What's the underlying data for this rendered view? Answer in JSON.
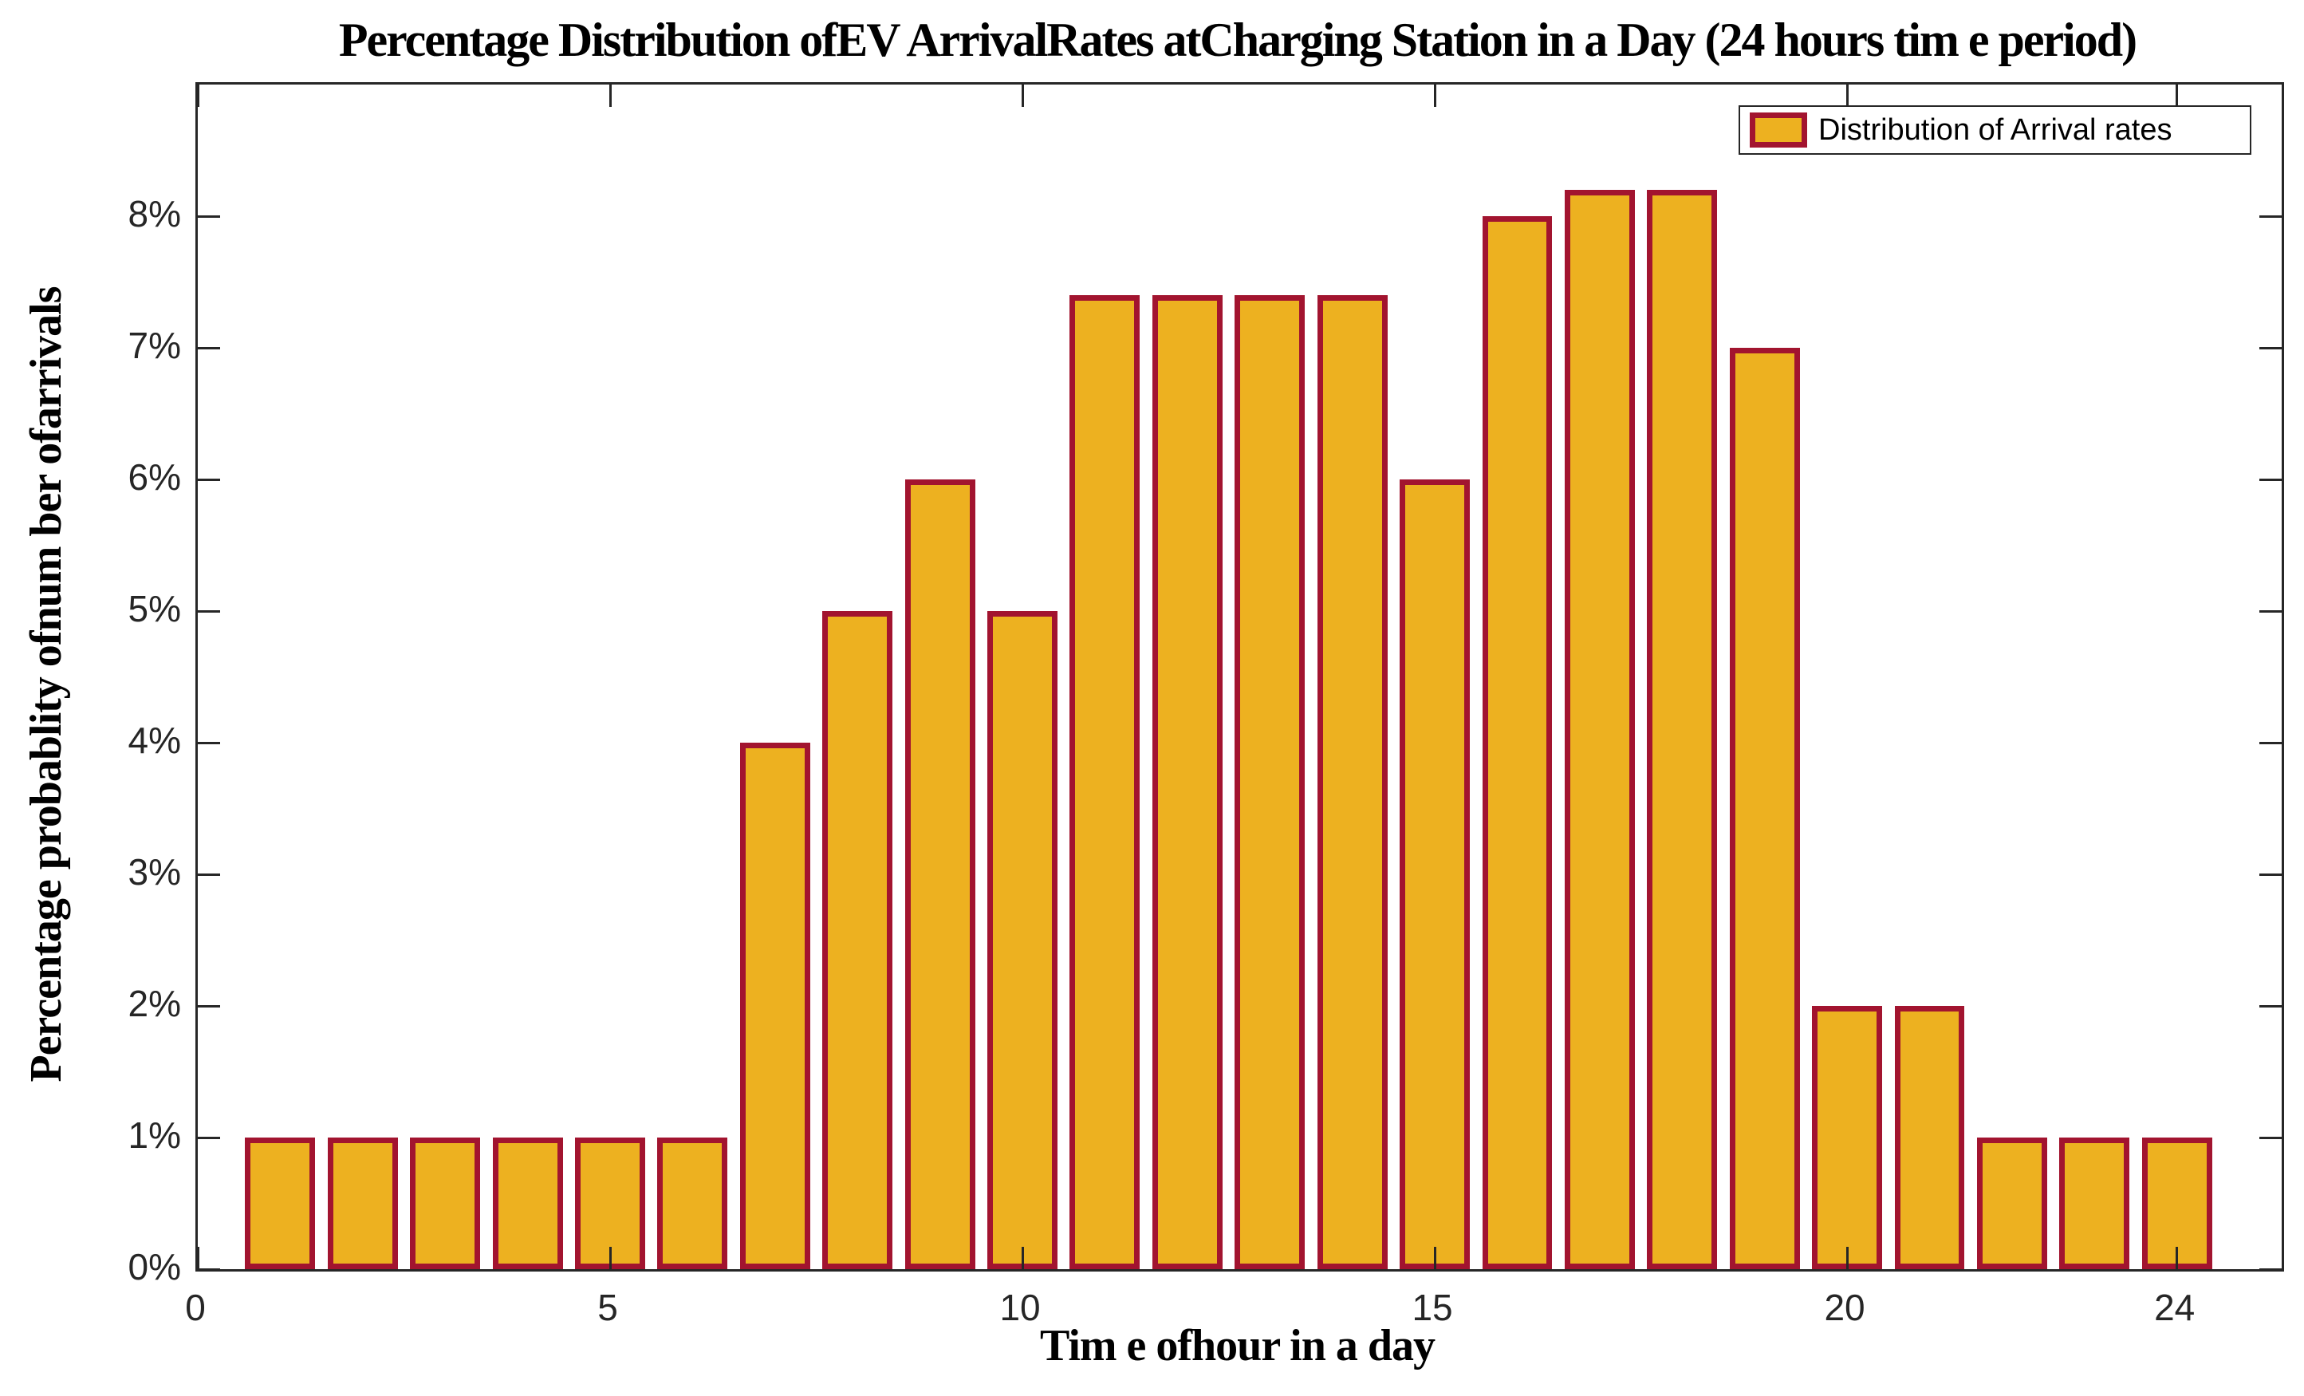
{
  "figure": {
    "title": "Percentage Distribution ofEV ArrivalRates atCharging Station in a Day (24 hours tim e period)"
  },
  "chart_data": {
    "type": "bar",
    "title": "Percentage Distribution ofEV ArrivalRates atCharging Station in a Day (24 hours tim e period)",
    "xlabel": "Tim e ofhour in a day",
    "ylabel": "Percentage probablity ofnum ber ofarrivals",
    "categories": [
      1,
      2,
      3,
      4,
      5,
      6,
      7,
      8,
      9,
      10,
      11,
      12,
      13,
      14,
      15,
      16,
      17,
      18,
      19,
      20,
      21,
      22,
      23,
      24
    ],
    "values": [
      1,
      1,
      1,
      1,
      1,
      1,
      4,
      5,
      6,
      5,
      7.4,
      7.4,
      7.4,
      7.4,
      6,
      8,
      8.2,
      8.2,
      7,
      2,
      2,
      1,
      1,
      1
    ],
    "values_unit": "%",
    "xlim": [
      0,
      25.27
    ],
    "ylim": [
      0,
      9
    ],
    "bar_width": 0.85,
    "x_ticks": [
      {
        "value": 0,
        "label": "0"
      },
      {
        "value": 5,
        "label": "5"
      },
      {
        "value": 10,
        "label": "10"
      },
      {
        "value": 15,
        "label": "15"
      },
      {
        "value": 20,
        "label": "20"
      },
      {
        "value": 24,
        "label": "24"
      }
    ],
    "y_ticks": [
      {
        "value": 0,
        "label": "0%"
      },
      {
        "value": 1,
        "label": "1%"
      },
      {
        "value": 2,
        "label": "2%"
      },
      {
        "value": 3,
        "label": "3%"
      },
      {
        "value": 4,
        "label": "4%"
      },
      {
        "value": 5,
        "label": "5%"
      },
      {
        "value": 6,
        "label": "6%"
      },
      {
        "value": 7,
        "label": "7%"
      },
      {
        "value": 8,
        "label": "8%"
      }
    ],
    "grid": false,
    "tick_direction": "in",
    "box": true,
    "legend": {
      "label": "Distribution of Arrival rates",
      "position": "top-right"
    },
    "colors": {
      "bar_fill": "#EDB120",
      "bar_edge": "#A2142F",
      "axis": "#262626",
      "text": "#000000",
      "background": "#FFFFFF"
    }
  }
}
